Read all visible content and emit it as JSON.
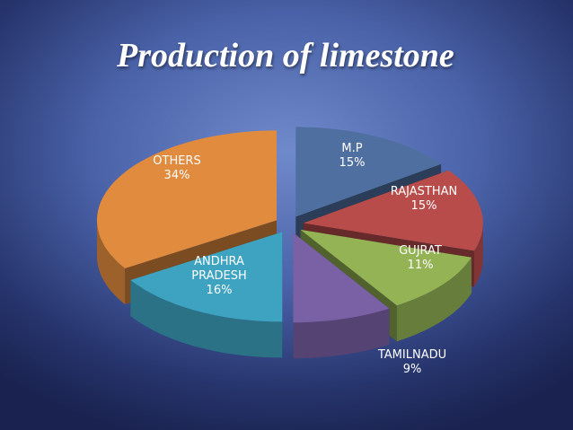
{
  "chart_data": {
    "type": "pie",
    "title": "Production of limestone",
    "categories": [
      "M.P",
      "RAJASTHAN",
      "GUJRAT",
      "TAMILNADU",
      "ANDHRA PRADESH",
      "OTHERS"
    ],
    "values": [
      15,
      15,
      11,
      9,
      16,
      34
    ],
    "value_labels": [
      "15%",
      "15%",
      "11%",
      "9%",
      "16%",
      "34%"
    ],
    "colors": [
      "#4f6fa0",
      "#b84c4a",
      "#93b354",
      "#7a60a4",
      "#3ea3c1",
      "#e08b3e"
    ]
  }
}
